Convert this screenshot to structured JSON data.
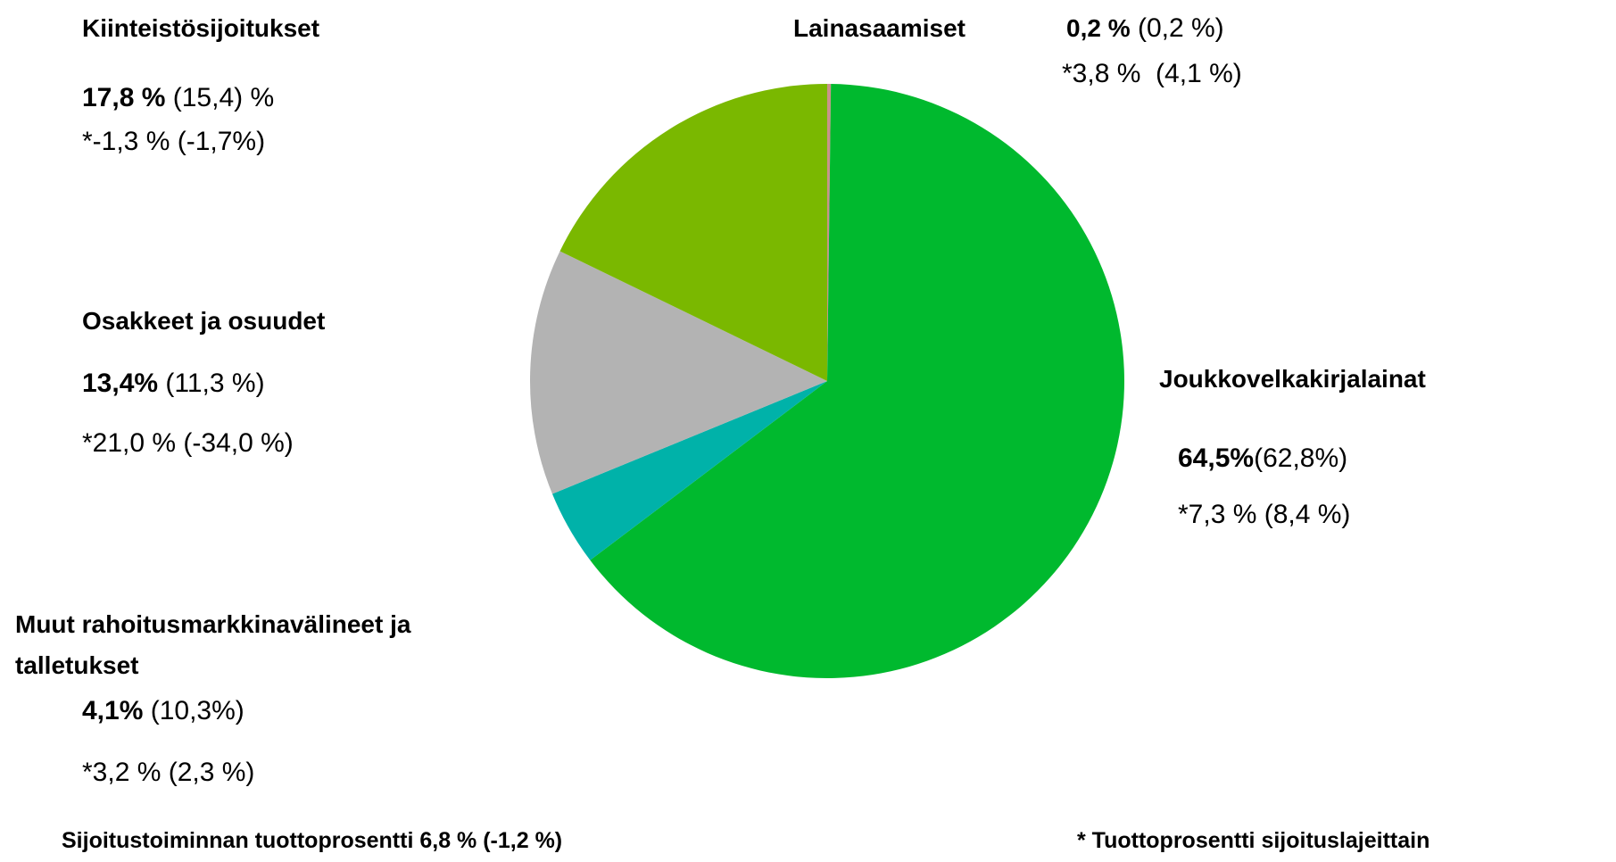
{
  "chart_data": {
    "type": "pie",
    "categories": [
      "Lainasaamiset",
      "Joukkovelkakirjalainat",
      "Muut rahoitusmarkkinavälineet ja talletukset",
      "Osakkeet ja osuudet",
      "Kiinteistösijoitukset"
    ],
    "values": [
      0.2,
      64.5,
      4.1,
      13.4,
      17.8
    ],
    "value_labels": [
      "0,2 %",
      "64,5%",
      "4,1%",
      "13,4%",
      "17,8 %"
    ],
    "previous": [
      "(0,2 %)",
      "(62,8%)",
      "(10,3%)",
      "(11,3 %)",
      "(15,4) %"
    ],
    "returns": [
      "*3,8 %  (4,1 %)",
      "*7,3 % (8,4 %)",
      "*3,2 % (2,3 %)",
      "*21,0 % (-34,0 %)",
      "*-1,3 % (-1,7%)"
    ],
    "colors": [
      "#c9938a",
      "#00b92e",
      "#00b2a9",
      "#b3b3b3",
      "#7ab800"
    ],
    "footnotes": [
      "Sijoitustoiminnan tuottoprosentti 6,8 % (-1,2 %)",
      "* Tuottoprosentti sijoituslajeittain"
    ]
  }
}
